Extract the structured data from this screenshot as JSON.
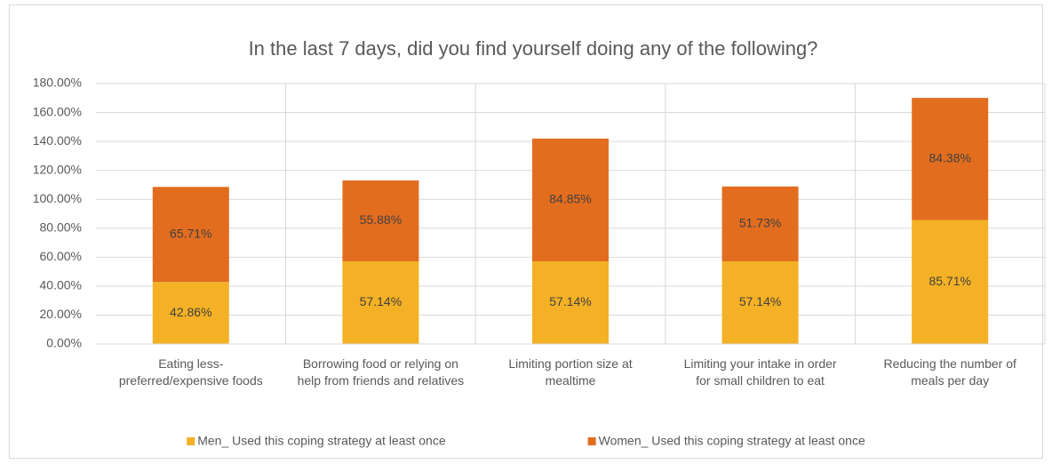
{
  "chart_data": {
    "type": "stacked_bar",
    "title": "In the last 7 days, did you find yourself doing any of the following?",
    "categories": [
      "Eating less-preferred/expensive foods",
      "Borrowing food or relying on help from friends and relatives",
      "Limiting portion size at mealtime",
      "Limiting your intake in order for small children to eat",
      "Reducing the number of meals per day"
    ],
    "series": [
      {
        "name": "Men_ Used this coping strategy at least once",
        "color": "#f4b125",
        "values": [
          42.86,
          57.14,
          57.14,
          57.14,
          85.71
        ],
        "value_labels": [
          "42.86%",
          "57.14%",
          "57.14%",
          "57.14%",
          "85.71%"
        ]
      },
      {
        "name": "Women_ Used this coping strategy at least once",
        "color": "#e26d1f",
        "values": [
          65.71,
          55.88,
          84.85,
          51.73,
          84.38
        ],
        "value_labels": [
          "65.71%",
          "55.88%",
          "84.85%",
          "51.73%",
          "84.38%"
        ]
      }
    ],
    "ylim": [
      0,
      180
    ],
    "yticks": [
      {
        "value": 0,
        "label": "0.00%"
      },
      {
        "value": 20,
        "label": "20.00%"
      },
      {
        "value": 40,
        "label": "40.00%"
      },
      {
        "value": 60,
        "label": "60.00%"
      },
      {
        "value": 80,
        "label": "80.00%"
      },
      {
        "value": 100,
        "label": "100.00%"
      },
      {
        "value": 120,
        "label": "120.00%"
      },
      {
        "value": 140,
        "label": "140.00%"
      },
      {
        "value": 160,
        "label": "160.00%"
      },
      {
        "value": 180,
        "label": "180.00%"
      }
    ],
    "grid": true,
    "legend": "bottom"
  }
}
